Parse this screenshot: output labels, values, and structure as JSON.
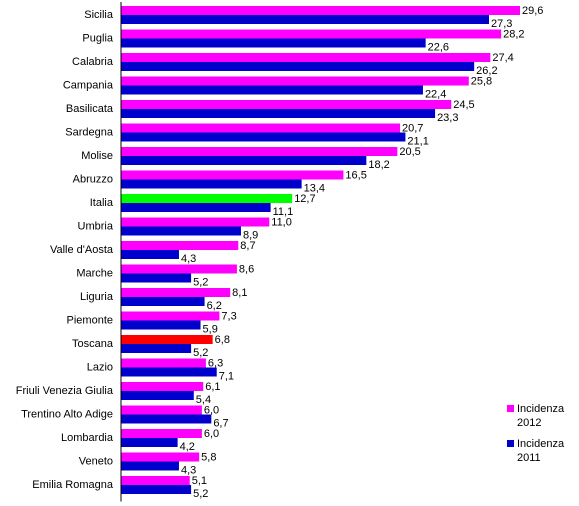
{
  "chart_data": {
    "type": "bar",
    "orientation": "horizontal",
    "categories": [
      "Sicilia",
      "Puglia",
      "Calabria",
      "Campania",
      "Basilicata",
      "Sardegna",
      "Molise",
      "Abruzzo",
      "Italia",
      "Umbria",
      "Valle d'Aosta",
      "Marche",
      "Liguria",
      "Piemonte",
      "Toscana",
      "Lazio",
      "Friuli Venezia Giulia",
      "Trentino Alto Adige",
      "Lombardia",
      "Veneto",
      "Emilia Romagna"
    ],
    "series": [
      {
        "name": "Incidenza 2012",
        "color": "#ff00ff",
        "values": [
          29.6,
          28.2,
          27.4,
          25.8,
          24.5,
          20.7,
          20.5,
          16.5,
          12.7,
          11.0,
          8.7,
          8.6,
          8.1,
          7.3,
          6.8,
          6.3,
          6.1,
          6.0,
          6.0,
          5.8,
          5.1
        ],
        "value_labels": [
          "29,6",
          "28,2",
          "27,4",
          "25,8",
          "24,5",
          "20,7",
          "20,5",
          "16,5",
          "12,7",
          "11,0",
          "8,7",
          "8,6",
          "8,1",
          "7,3",
          "6,8",
          "6,3",
          "6,1",
          "6,0",
          "6,0",
          "5,8",
          "5,1"
        ]
      },
      {
        "name": "Incidenza 2011",
        "color": "#0000cc",
        "values": [
          27.3,
          22.6,
          26.2,
          22.4,
          23.3,
          21.1,
          18.2,
          13.4,
          11.1,
          8.9,
          4.3,
          5.2,
          6.2,
          5.9,
          5.2,
          7.1,
          5.4,
          6.7,
          4.2,
          4.3,
          5.2
        ],
        "value_labels": [
          "27,3",
          "22,6",
          "26,2",
          "22,4",
          "23,3",
          "21,1",
          "18,2",
          "13,4",
          "11,1",
          "8,9",
          "4,3",
          "5,2",
          "6,2",
          "5,9",
          "5,2",
          "7,1",
          "5,4",
          "6,7",
          "4,2",
          "4,3",
          "5,2"
        ]
      }
    ],
    "highlight_colors": {
      "Italia": "#00ff00",
      "Toscana": "#ff0000"
    },
    "legend": {
      "placement": "bottom-right",
      "entries": [
        {
          "line1": "Incidenza",
          "line2": "2012",
          "color": "#ff00ff"
        },
        {
          "line1": "Incidenza",
          "line2": "2011",
          "color": "#0000cc"
        }
      ]
    },
    "xlim": [
      0,
      29.6
    ],
    "axis_color": "#000000",
    "grid": false
  }
}
